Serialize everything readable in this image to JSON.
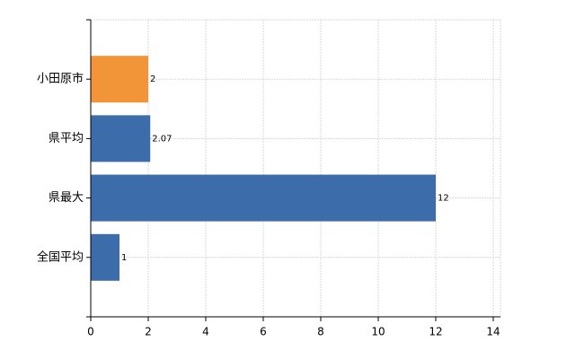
{
  "chart_data": {
    "type": "barh",
    "categories": [
      "小田原市",
      "県平均",
      "県最大",
      "全国平均"
    ],
    "values": [
      2,
      2.07,
      12,
      1
    ],
    "colors": [
      "#f29438",
      "#3d6caa",
      "#3d6caa",
      "#3d6caa"
    ],
    "xlim": [
      0,
      14.25
    ],
    "xticks": [
      0,
      2,
      4,
      6,
      8,
      10,
      12,
      14
    ],
    "grid": true
  }
}
